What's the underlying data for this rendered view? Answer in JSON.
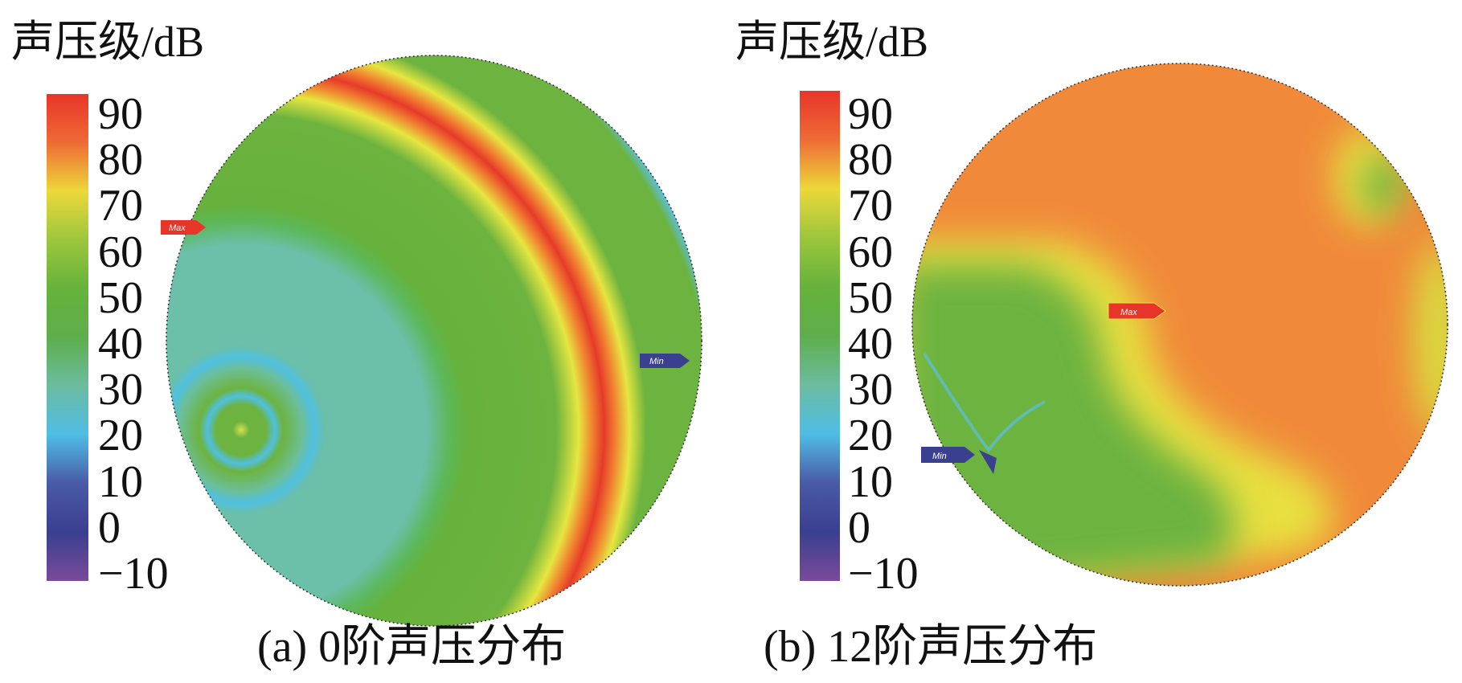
{
  "chart_data": [
    {
      "type": "heatmap",
      "caption": "(a) 0阶声压分布",
      "colorbar": {
        "label": "声压级/dB",
        "ticks": [
          "90",
          "80",
          "70",
          "60",
          "50",
          "40",
          "30",
          "20",
          "10",
          "0",
          "−10"
        ],
        "range": [
          -10,
          90
        ],
        "colors": {
          "90": "#e8352a",
          "80": "#ee6b35",
          "70": "#ecd83a",
          "60": "#9cc63c",
          "50": "#66b23c",
          "40": "#5eae4c",
          "30": "#6cbca0",
          "20": "#4fbde6",
          "10": "#4a5aa6",
          "0": "#3a3f8f",
          "-10": "#7a4a9a"
        }
      },
      "markers": [
        {
          "label": "Max",
          "color": "#e8352a"
        },
        {
          "label": "Min",
          "color": "#3a3f8f"
        }
      ]
    },
    {
      "type": "heatmap",
      "caption": "(b) 12阶声压分布",
      "colorbar": {
        "label": "声压级/dB",
        "ticks": [
          "90",
          "80",
          "70",
          "60",
          "50",
          "40",
          "30",
          "20",
          "10",
          "0",
          "−10"
        ],
        "range": [
          -10,
          90
        ]
      },
      "markers": [
        {
          "label": "Max",
          "color": "#e8352a"
        },
        {
          "label": "Min",
          "color": "#3a3f8f"
        }
      ]
    }
  ]
}
